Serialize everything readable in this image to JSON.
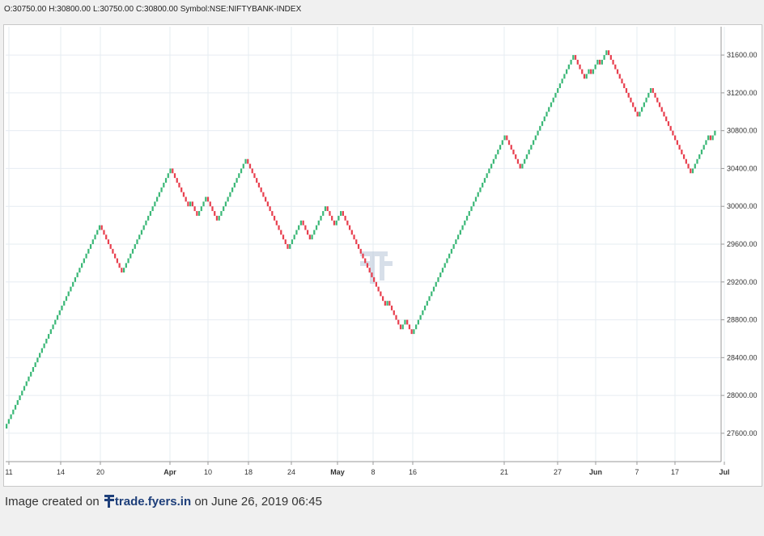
{
  "header": {
    "open": "O:30750.00",
    "high": "H:30800.00",
    "low": "L:30750.00",
    "close": "C:30800.00",
    "symbol": "Symbol:NSE:NIFTYBANK-INDEX"
  },
  "footer": {
    "prefix": "Image created on",
    "brand": "trade.fyers.in",
    "suffix": "on June 26, 2019 06:45"
  },
  "colors": {
    "up": "#3cb878",
    "down": "#e8404f",
    "grid": "#e6ecf2",
    "watermark": "#b8c6d8"
  },
  "chart_data": {
    "type": "renko",
    "brick_size": 50,
    "start": 27650,
    "ylim": [
      27300,
      31900
    ],
    "y_ticks": [
      27600,
      28000,
      28400,
      28800,
      29200,
      29600,
      30000,
      30400,
      30800,
      31200,
      31600
    ],
    "y_tick_labels": [
      "27600.00",
      "28000.00",
      "28400.00",
      "28800.00",
      "29200.00",
      "29600.00",
      "30000.00",
      "30400.00",
      "30800.00",
      "31200.00",
      "31600.00"
    ],
    "x_tick_labels": [
      "11",
      "14",
      "20",
      "Apr",
      "10",
      "18",
      "24",
      "May",
      "8",
      "16",
      "21",
      "27",
      "Jun",
      "7",
      "17",
      "Jul"
    ],
    "bold_x_labels": [
      "Apr",
      "May",
      "Jun",
      "Jul"
    ],
    "segments": [
      {
        "direction": "up",
        "to": 29800
      },
      {
        "direction": "down",
        "to": 29300
      },
      {
        "direction": "up",
        "to": 30400
      },
      {
        "direction": "down",
        "to": 30000
      },
      {
        "direction": "up",
        "to": 30050
      },
      {
        "direction": "down",
        "to": 29900
      },
      {
        "direction": "up",
        "to": 30100
      },
      {
        "direction": "down",
        "to": 29850
      },
      {
        "direction": "up",
        "to": 30500
      },
      {
        "direction": "down",
        "to": 29550
      },
      {
        "direction": "up",
        "to": 29850
      },
      {
        "direction": "down",
        "to": 29650
      },
      {
        "direction": "up",
        "to": 30000
      },
      {
        "direction": "down",
        "to": 29800
      },
      {
        "direction": "up",
        "to": 29950
      },
      {
        "direction": "down",
        "to": 28950
      },
      {
        "direction": "up",
        "to": 29000
      },
      {
        "direction": "down",
        "to": 28700
      },
      {
        "direction": "up",
        "to": 28800
      },
      {
        "direction": "down",
        "to": 28650
      },
      {
        "direction": "up",
        "to": 30750
      },
      {
        "direction": "down",
        "to": 30400
      },
      {
        "direction": "up",
        "to": 31600
      },
      {
        "direction": "down",
        "to": 31350
      },
      {
        "direction": "up",
        "to": 31450
      },
      {
        "direction": "down",
        "to": 31400
      },
      {
        "direction": "up",
        "to": 31550
      },
      {
        "direction": "down",
        "to": 31500
      },
      {
        "direction": "up",
        "to": 31650
      },
      {
        "direction": "down",
        "to": 30950
      },
      {
        "direction": "up",
        "to": 31250
      },
      {
        "direction": "down",
        "to": 30350
      },
      {
        "direction": "up",
        "to": 30750
      },
      {
        "direction": "down",
        "to": 30700
      },
      {
        "direction": "up",
        "to": 30800
      }
    ]
  }
}
